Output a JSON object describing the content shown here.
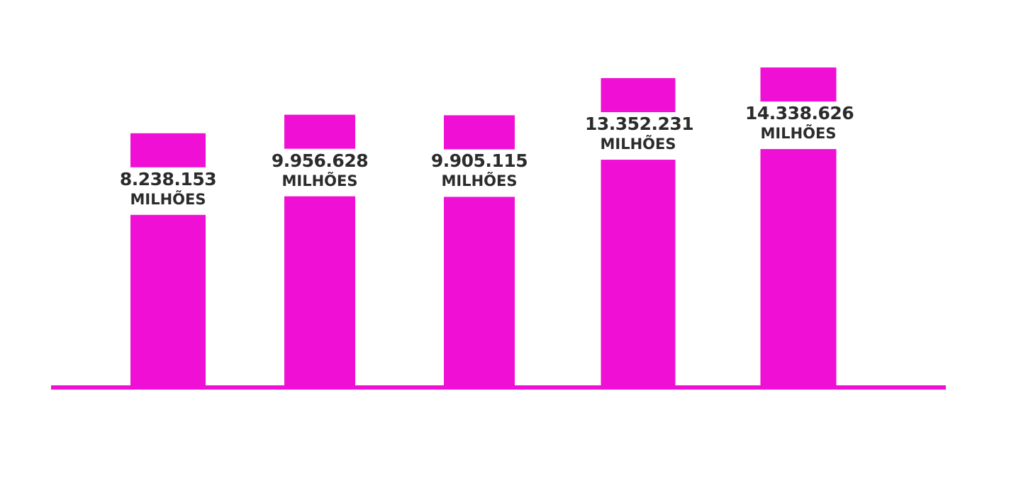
{
  "chart_data": {
    "type": "bar",
    "categories": [
      "",
      "",
      "",
      "",
      ""
    ],
    "values": [
      8238153,
      9956628,
      9905115,
      13352231,
      14338626
    ],
    "data_labels": [
      "8.238.153",
      "9.956.628",
      "9.905.115",
      "13.352.231",
      "14.338.626"
    ],
    "unit_label": "MILHÕES",
    "title": "",
    "xlabel": "",
    "ylabel": "",
    "grid": false,
    "legend": "none",
    "colors": {
      "bar": "#f00fd4",
      "text": "#2b2b2b",
      "baseline": "#f00fd4"
    }
  }
}
